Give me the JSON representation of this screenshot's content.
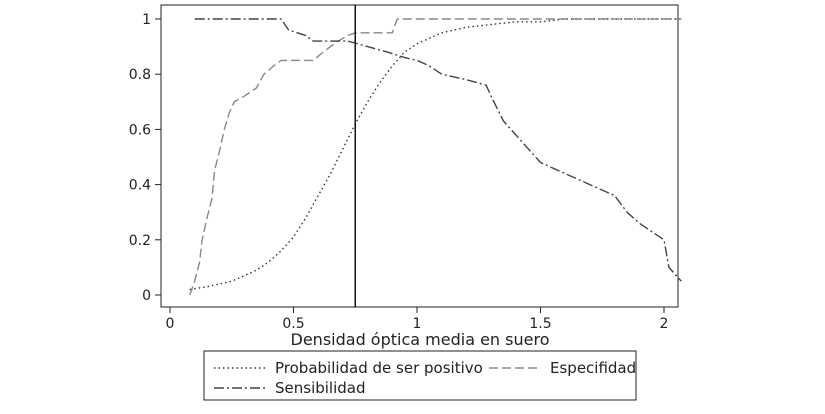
{
  "chart_data": {
    "type": "line",
    "xlabel": "Densidad óptica media en suero",
    "ylabel": "",
    "xlim": [
      0,
      2.1
    ],
    "ylim": [
      0,
      1
    ],
    "xticks": [
      "0",
      "0.5",
      "1",
      "1.5",
      "2"
    ],
    "yticks": [
      "0",
      "0.2",
      "0.4",
      "0.6",
      "0.8",
      "1"
    ],
    "grid": false,
    "legend_position": "bottom",
    "vertical_line_x": 0.75,
    "series": [
      {
        "name": "Probabilidad de ser positivo",
        "style": "dotted",
        "x": [
          0.08,
          0.15,
          0.2,
          0.25,
          0.3,
          0.35,
          0.4,
          0.45,
          0.5,
          0.55,
          0.6,
          0.65,
          0.7,
          0.75,
          0.8,
          0.85,
          0.9,
          0.95,
          1.0,
          1.05,
          1.1,
          1.2,
          1.3,
          1.4,
          1.5,
          1.6,
          1.7,
          1.8,
          1.9,
          2.0,
          2.07
        ],
        "values": [
          0.02,
          0.03,
          0.04,
          0.05,
          0.07,
          0.09,
          0.12,
          0.16,
          0.21,
          0.28,
          0.36,
          0.44,
          0.53,
          0.62,
          0.7,
          0.77,
          0.83,
          0.88,
          0.91,
          0.93,
          0.95,
          0.97,
          0.98,
          0.99,
          0.99,
          1.0,
          1.0,
          1.0,
          1.0,
          1.0,
          1.0
        ]
      },
      {
        "name": "Especifidad",
        "style": "dashed",
        "x": [
          0.08,
          0.1,
          0.12,
          0.13,
          0.15,
          0.17,
          0.18,
          0.2,
          0.22,
          0.24,
          0.26,
          0.3,
          0.35,
          0.38,
          0.42,
          0.45,
          0.5,
          0.58,
          0.62,
          0.68,
          0.72,
          0.75,
          0.8,
          0.9,
          0.92,
          1.0,
          1.5,
          2.07
        ],
        "values": [
          0.0,
          0.05,
          0.12,
          0.2,
          0.28,
          0.35,
          0.45,
          0.52,
          0.6,
          0.66,
          0.7,
          0.72,
          0.75,
          0.8,
          0.83,
          0.85,
          0.85,
          0.85,
          0.88,
          0.92,
          0.94,
          0.95,
          0.95,
          0.95,
          1.0,
          1.0,
          1.0,
          1.0
        ]
      },
      {
        "name": "Sensibilidad",
        "style": "dashdot",
        "x": [
          0.1,
          0.3,
          0.45,
          0.48,
          0.55,
          0.58,
          0.65,
          0.72,
          0.8,
          0.88,
          0.95,
          1.0,
          1.05,
          1.1,
          1.2,
          1.28,
          1.3,
          1.35,
          1.4,
          1.45,
          1.5,
          1.6,
          1.7,
          1.8,
          1.85,
          1.9,
          1.95,
          2.0,
          2.02,
          2.07
        ],
        "values": [
          1.0,
          1.0,
          1.0,
          0.96,
          0.94,
          0.92,
          0.92,
          0.92,
          0.9,
          0.88,
          0.86,
          0.85,
          0.83,
          0.8,
          0.78,
          0.76,
          0.72,
          0.63,
          0.58,
          0.53,
          0.48,
          0.44,
          0.4,
          0.36,
          0.3,
          0.26,
          0.23,
          0.2,
          0.1,
          0.05
        ]
      }
    ]
  }
}
